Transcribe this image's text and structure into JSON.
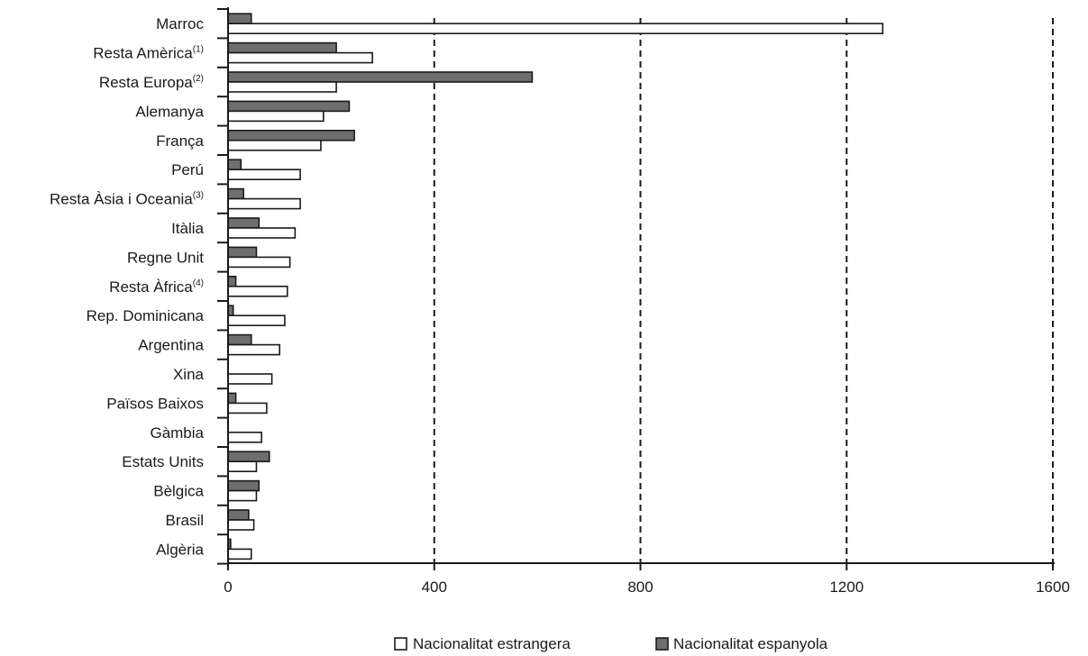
{
  "chart_data": {
    "type": "bar",
    "orientation": "horizontal",
    "categories": [
      {
        "label": "Marroc",
        "note": ""
      },
      {
        "label": "Resta Amèrica",
        "note": "(1)"
      },
      {
        "label": "Resta Europa",
        "note": "(2)"
      },
      {
        "label": "Alemanya",
        "note": ""
      },
      {
        "label": "França",
        "note": ""
      },
      {
        "label": "Perú",
        "note": ""
      },
      {
        "label": "Resta Àsia i Oceania",
        "note": "(3)"
      },
      {
        "label": "Itàlia",
        "note": ""
      },
      {
        "label": "Regne Unit",
        "note": ""
      },
      {
        "label": "Resta Àfrica",
        "note": "(4)"
      },
      {
        "label": "Rep. Dominicana",
        "note": ""
      },
      {
        "label": "Argentina",
        "note": ""
      },
      {
        "label": "Xina",
        "note": ""
      },
      {
        "label": "Països Baixos",
        "note": ""
      },
      {
        "label": "Gàmbia",
        "note": ""
      },
      {
        "label": "Estats Units",
        "note": ""
      },
      {
        "label": "Bèlgica",
        "note": ""
      },
      {
        "label": "Brasil",
        "note": ""
      },
      {
        "label": "Algèria",
        "note": ""
      }
    ],
    "series": [
      {
        "name": "Nacionalitat estrangera",
        "color": "#ffffff",
        "values": [
          1270,
          280,
          210,
          185,
          180,
          140,
          140,
          130,
          120,
          115,
          110,
          100,
          85,
          75,
          65,
          55,
          55,
          50,
          45
        ]
      },
      {
        "name": "Nacionalitat espanyola",
        "color": "#6e6e6e",
        "values": [
          45,
          210,
          590,
          235,
          245,
          25,
          30,
          60,
          55,
          15,
          10,
          45,
          0,
          15,
          0,
          80,
          60,
          40,
          5
        ]
      }
    ],
    "xlim": [
      0,
      1600
    ],
    "xticks": [
      0,
      400,
      800,
      1200,
      1600
    ],
    "grid": "vertical dashed",
    "legend_position": "bottom",
    "title": "",
    "xlabel": "",
    "ylabel": ""
  }
}
